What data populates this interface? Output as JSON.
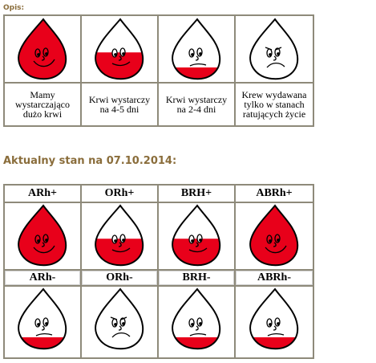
{
  "opis_label": "Opis:",
  "legend": [
    {
      "caption": "Mamy wystarczająco dużo krwi",
      "fill": 1.0,
      "face": "happy"
    },
    {
      "caption": "Krwi wystarczy na 4-5 dni",
      "fill": 0.45,
      "face": "ok"
    },
    {
      "caption": "Krwi wystarczy na 2-4 dni",
      "fill": 0.2,
      "face": "worried"
    },
    {
      "caption": "Krew wydawana tylko w stanach ratujących życie",
      "fill": 0.0,
      "face": "sad"
    }
  ],
  "status_title": "Aktualny stan na 07.10.2014:",
  "groups": [
    {
      "label": "ARh+",
      "fill": 1.0,
      "face": "happy"
    },
    {
      "label": "ORh+",
      "fill": 0.45,
      "face": "ok"
    },
    {
      "label": "BRH+",
      "fill": 0.45,
      "face": "ok"
    },
    {
      "label": "ABRh+",
      "fill": 1.0,
      "face": "happy"
    },
    {
      "label": "ARh-",
      "fill": 0.2,
      "face": "worried"
    },
    {
      "label": "ORh-",
      "fill": 0.0,
      "face": "sad"
    },
    {
      "label": "BRH-",
      "fill": 0.2,
      "face": "worried"
    },
    {
      "label": "ABRh-",
      "fill": 0.2,
      "face": "worried"
    }
  ],
  "colors": {
    "blood": "#e8001a",
    "border": "#8e8a7a"
  }
}
